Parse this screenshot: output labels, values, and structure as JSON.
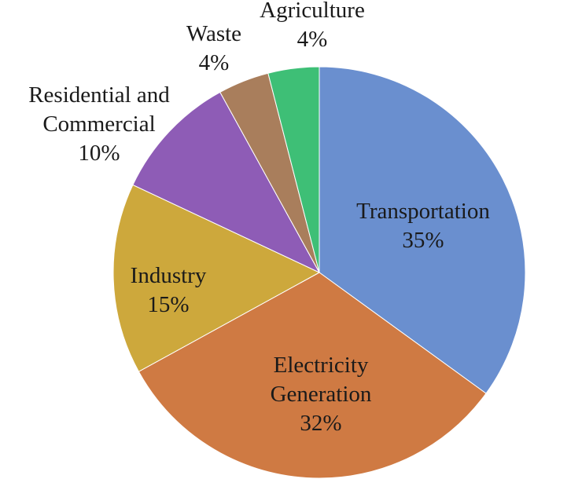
{
  "chart_data": {
    "type": "pie",
    "title": "",
    "start_angle_deg": 0,
    "direction": "clockwise",
    "slices": [
      {
        "key": "transportation",
        "label_lines": [
          "Transportation"
        ],
        "value_label": "35%",
        "value": 35,
        "color": "#6a8fcf"
      },
      {
        "key": "electricity",
        "label_lines": [
          "Electricity",
          "Generation"
        ],
        "value_label": "32%",
        "value": 32,
        "color": "#cf7a43"
      },
      {
        "key": "industry",
        "label_lines": [
          "Industry"
        ],
        "value_label": "15%",
        "value": 15,
        "color": "#cda83c"
      },
      {
        "key": "residential",
        "label_lines": [
          "Residential and",
          "Commercial"
        ],
        "value_label": "10%",
        "value": 10,
        "color": "#8e5cb6"
      },
      {
        "key": "waste",
        "label_lines": [
          "Waste"
        ],
        "value_label": "4%",
        "value": 4,
        "color": "#a97e5c"
      },
      {
        "key": "agriculture",
        "label_lines": [
          "Agriculture"
        ],
        "value_label": "4%",
        "value": 4,
        "color": "#3ebf76"
      }
    ]
  }
}
